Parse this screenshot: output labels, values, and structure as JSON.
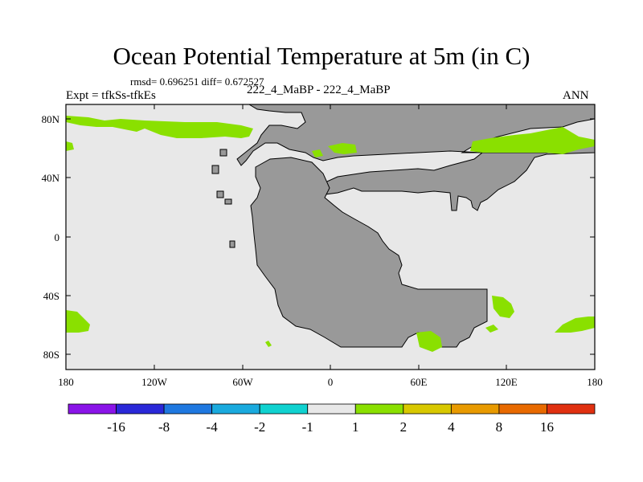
{
  "title": "Ocean Potential Temperature at 5m (in C)",
  "stats": "rmsd= 0.696251 diff= 0.672527",
  "expt_label": "Expt = tfkSs-tfkEs",
  "cases_label": "222_4_MaBP - 222_4_MaBP",
  "season": "ANN",
  "lat_ticks": [
    "80N",
    "40N",
    "0",
    "40S",
    "80S"
  ],
  "lon_ticks": [
    "180",
    "120W",
    "60W",
    "0",
    "60E",
    "120E",
    "180"
  ],
  "colorbar": {
    "labels": [
      "-16",
      "-8",
      "-4",
      "-2",
      "-1",
      "1",
      "2",
      "4",
      "8",
      "16"
    ],
    "colors": [
      "#8a14e8",
      "#2a28d8",
      "#1f78e0",
      "#1aaade",
      "#10d2d0",
      "#e8e8e8",
      "#8ae000",
      "#d8c800",
      "#e89a00",
      "#e86a00",
      "#e03010"
    ]
  },
  "colors": {
    "land": "#999999",
    "ocean": "#e8e8e8",
    "warm_anomaly": "#8ae000"
  }
}
